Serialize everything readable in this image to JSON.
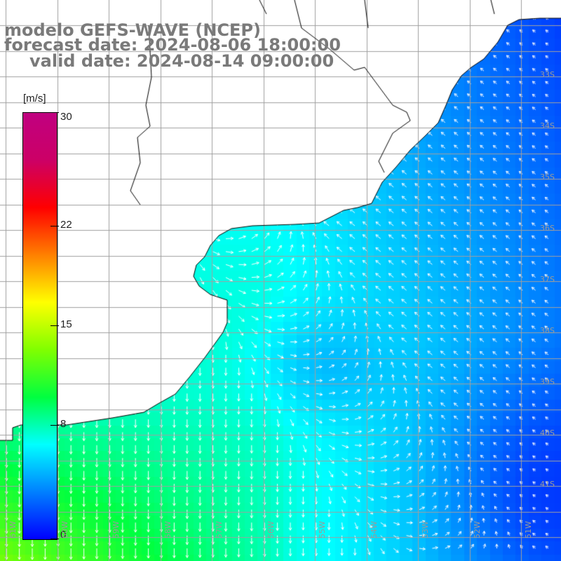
{
  "title": {
    "line1": "modelo GEFS-WAVE (NCEP)",
    "line2": "forecast date: 2024-08-06 18:00:00",
    "line3": "valid date: 2024-08-14 09:00:00"
  },
  "colorbar": {
    "units": "[m/s]",
    "ticks": [
      "30",
      "22",
      "15",
      "8",
      "0"
    ],
    "tick_values": [
      30,
      22,
      15,
      8,
      0
    ],
    "range": [
      0,
      30
    ],
    "colors": [
      "#0000ff",
      "#0080ff",
      "#00ffff",
      "#00ff40",
      "#80ff00",
      "#ffff00",
      "#ff8000",
      "#ff0000",
      "#cc0066",
      "#c00080"
    ]
  },
  "map": {
    "lat_labels": [
      "33S",
      "34S",
      "35S",
      "36S",
      "37S",
      "38S",
      "39S",
      "40S",
      "41S"
    ],
    "lat_values": [
      -33,
      -34,
      -35,
      -36,
      -37,
      -38,
      -39,
      -40,
      -41
    ],
    "lon_labels": [
      "61W",
      "60W",
      "59W",
      "58W",
      "57W",
      "56W",
      "55W",
      "54W",
      "53W",
      "52W",
      "51W"
    ],
    "lon_values": [
      -61,
      -60,
      -59,
      -58,
      -57,
      -56,
      -55,
      -54,
      -53,
      -52,
      -51
    ],
    "field_variable": "wind speed",
    "land_color": "#ffffff",
    "coast_color": "#000000",
    "grid_color": "#a0a0a0",
    "arrow_color": "#ffffff"
  }
}
